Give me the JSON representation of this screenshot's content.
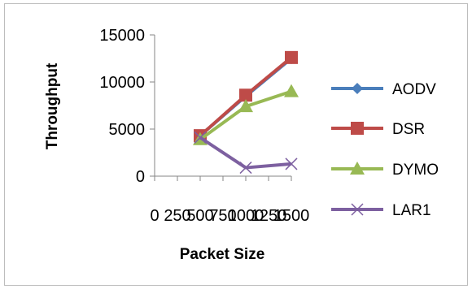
{
  "chart_data": {
    "type": "line",
    "title": "",
    "xlabel": "Packet Size",
    "ylabel": "Throughput",
    "x": [
      0,
      250,
      500,
      750,
      1000,
      1250,
      1500
    ],
    "x_tick_labels": [
      "0",
      "250",
      "500",
      "750",
      "1000",
      "1250",
      "1500"
    ],
    "y_ticks": [
      0,
      5000,
      10000,
      15000
    ],
    "y_tick_labels": [
      "0",
      "5000",
      "10000",
      "15000"
    ],
    "ylim": [
      0,
      15000
    ],
    "grid": false,
    "legend_position": "right",
    "series": [
      {
        "name": "AODV",
        "color": "#4a7ebb",
        "marker": "diamond",
        "x": [
          500,
          1000,
          1500
        ],
        "values": [
          4300,
          8500,
          12500
        ]
      },
      {
        "name": "DSR",
        "color": "#be4b48",
        "marker": "square",
        "x": [
          500,
          1000,
          1500
        ],
        "values": [
          4300,
          8600,
          12600
        ]
      },
      {
        "name": "DYMO",
        "color": "#98b954",
        "marker": "triangle",
        "x": [
          500,
          1000,
          1500
        ],
        "values": [
          3900,
          7400,
          9000
        ]
      },
      {
        "name": "LAR1",
        "color": "#7d60a0",
        "marker": "x",
        "x": [
          500,
          1000,
          1500
        ],
        "values": [
          4100,
          900,
          1300
        ]
      }
    ]
  }
}
